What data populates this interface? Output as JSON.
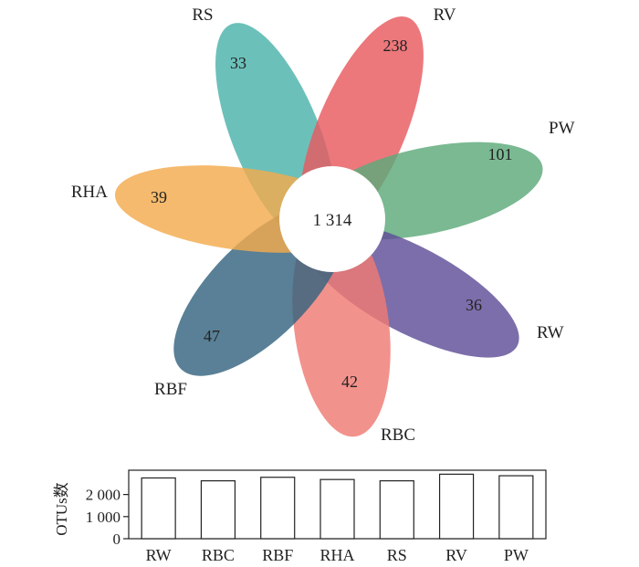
{
  "chart_data": [
    {
      "type": "venn-flower",
      "core": {
        "label": "1 314",
        "value": 1314
      },
      "petals": [
        {
          "name": "RS",
          "unique": "33",
          "color": "#4cb2ab"
        },
        {
          "name": "RV",
          "unique": "238",
          "color": "#e85a5f"
        },
        {
          "name": "PW",
          "unique": "101",
          "color": "#5da97a"
        },
        {
          "name": "RW",
          "unique": "36",
          "color": "#5f4e97"
        },
        {
          "name": "RBC",
          "unique": "42",
          "color": "#ef7a73"
        },
        {
          "name": "RBF",
          "unique": "47",
          "color": "#35647f"
        },
        {
          "name": "RHA",
          "unique": "39",
          "color": "#f3ab4d"
        }
      ]
    },
    {
      "type": "bar",
      "categories": [
        "RW",
        "RBC",
        "RBF",
        "RHA",
        "RS",
        "RV",
        "PW"
      ],
      "values": [
        2750,
        2620,
        2780,
        2680,
        2620,
        2920,
        2850
      ],
      "ylabel": "OTUs数",
      "ylim": [
        0,
        3100
      ],
      "yticks": [
        0,
        1000,
        2000
      ],
      "ytick_labels": [
        "0",
        "1 000",
        "2 000"
      ]
    }
  ]
}
